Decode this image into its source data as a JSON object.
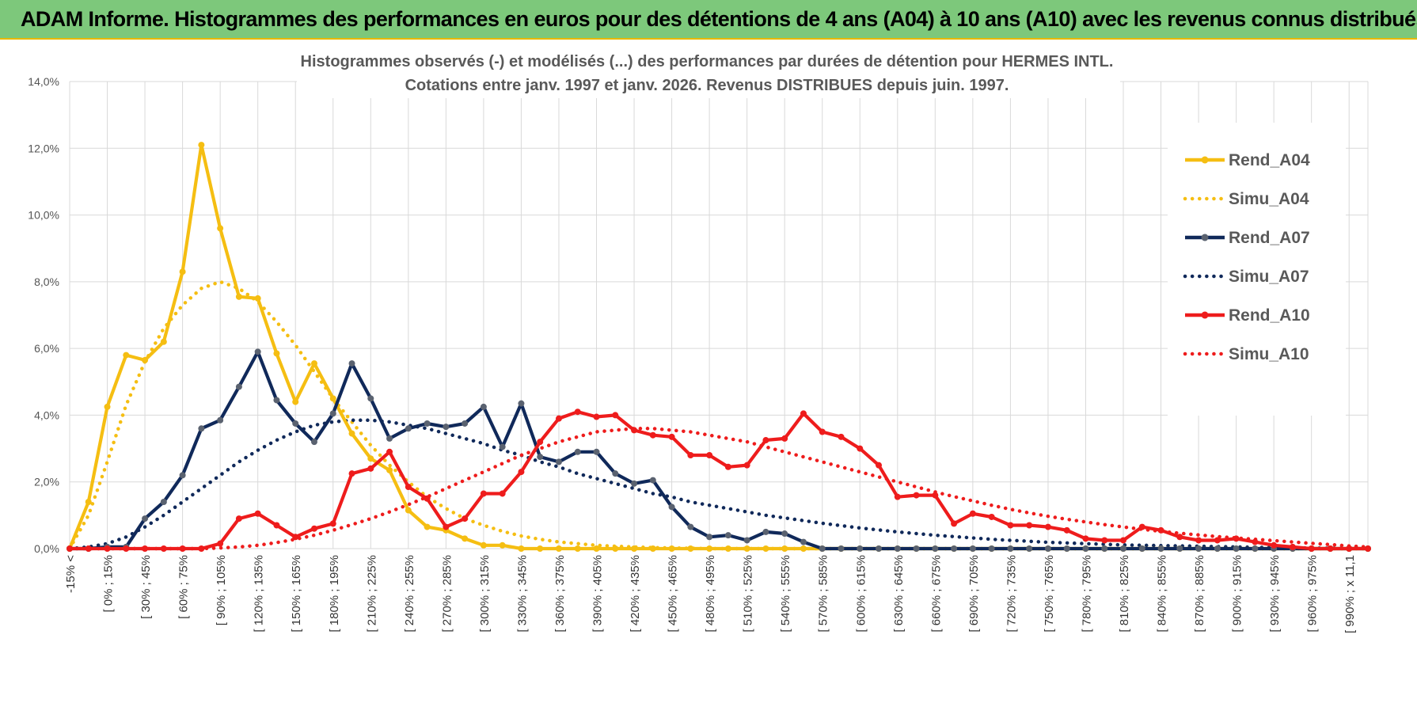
{
  "banner": {
    "title": "ADAM Informe. Histogrammes des performances en euros pour des détentions de 4 ans (A04) à 10 ans (A10) avec les revenus connus distribués"
  },
  "colors": {
    "banner_bg": "#7dc87b",
    "A04": "#f5be12",
    "A07": "#10295a",
    "A10": "#ee1c1c",
    "marker_A07": "#5a6270"
  },
  "chart_data": {
    "type": "line",
    "title": [
      "Histogrammes observés (-) et modélisés (...) des performances par durées de détention pour HERMES INTL.",
      "Cotations entre janv. 1997 et janv. 2026. Revenus DISTRIBUES depuis juin. 1997."
    ],
    "ylim": [
      0,
      14
    ],
    "y_ticks": [
      "0,0%",
      "2,0%",
      "4,0%",
      "6,0%",
      "8,0%",
      "10,0%",
      "12,0%",
      "14,0%"
    ],
    "x_tick_labels": [
      "-15% <",
      "[ 0% ; 15%",
      "[ 30% ; 45%",
      "[ 60% ; 75%",
      "[ 90% ; 105%",
      "[ 120% ; 135%",
      "[ 150% ; 165%",
      "[ 180% ; 195%",
      "[ 210% ; 225%",
      "[ 240% ; 255%",
      "[ 270% ; 285%",
      "[ 300% ; 315%",
      "[ 330% ; 345%",
      "[ 360% ; 375%",
      "[ 390% ; 405%",
      "[ 420% ; 435%",
      "[ 450% ; 465%",
      "[ 480% ; 495%",
      "[ 510% ; 525%",
      "[ 540% ; 555%",
      "[ 570% ; 585%",
      "[ 600% ; 615%",
      "[ 630% ; 645%",
      "[ 660% ; 675%",
      "[ 690% ; 705%",
      "[ 720% ; 735%",
      "[ 750% ; 765%",
      "[ 780% ; 795%",
      "[ 810% ; 825%",
      "[ 840% ; 855%",
      "[ 870% ; 885%",
      "[ 900% ; 915%",
      "[ 930% ; 945%",
      "[ 960% ; 975%",
      "[ 990% ; x 11,1"
    ],
    "n_bins": 70,
    "series": [
      {
        "name": "Rend_A04",
        "style": "solid",
        "color_key": "A04",
        "values": [
          0,
          1.4,
          4.25,
          5.8,
          5.65,
          6.2,
          8.3,
          12.1,
          9.6,
          7.55,
          7.5,
          5.85,
          4.4,
          5.55,
          4.5,
          3.45,
          2.7,
          2.35,
          1.15,
          0.65,
          0.55,
          0.3,
          0.1,
          0.1,
          0,
          0,
          0,
          0,
          0,
          0,
          0,
          0,
          0,
          0,
          0,
          0,
          0,
          0,
          0,
          0,
          0,
          0,
          0,
          0,
          0,
          0,
          0,
          0,
          0,
          0,
          0,
          0,
          0,
          0,
          0,
          0,
          0,
          0,
          0,
          0,
          0,
          0,
          0,
          0,
          0,
          0,
          0,
          0,
          0,
          0
        ]
      },
      {
        "name": "Simu_A04",
        "style": "dotted",
        "color_key": "A04",
        "values": [
          0,
          1,
          2.6,
          4.3,
          5.6,
          6.6,
          7.3,
          7.8,
          8.0,
          7.8,
          7.4,
          6.8,
          6.1,
          5.3,
          4.5,
          3.8,
          3.1,
          2.5,
          2,
          1.55,
          1.2,
          0.9,
          0.7,
          0.52,
          0.38,
          0.28,
          0.2,
          0.15,
          0.1,
          0.07,
          0.05,
          0.03,
          0.02,
          0.01,
          0,
          0,
          0,
          0,
          0,
          0,
          0,
          0,
          0,
          0,
          0,
          0,
          0,
          0,
          0,
          0,
          0,
          0,
          0,
          0,
          0,
          0,
          0,
          0,
          0,
          0,
          0,
          0,
          0,
          0,
          0,
          0,
          0,
          0,
          0,
          0
        ]
      },
      {
        "name": "Rend_A07",
        "style": "solid",
        "color_key": "A07",
        "values": [
          0,
          0,
          0.05,
          0.05,
          0.9,
          1.4,
          2.2,
          3.6,
          3.85,
          4.85,
          5.9,
          4.45,
          3.75,
          3.2,
          4.05,
          5.55,
          4.5,
          3.3,
          3.6,
          3.75,
          3.65,
          3.75,
          4.25,
          3.05,
          4.35,
          2.75,
          2.6,
          2.9,
          2.9,
          2.25,
          1.95,
          2.05,
          1.25,
          0.65,
          0.35,
          0.4,
          0.25,
          0.5,
          0.45,
          0.2,
          0,
          0,
          0,
          0,
          0,
          0,
          0,
          0,
          0,
          0,
          0,
          0,
          0,
          0,
          0,
          0,
          0,
          0,
          0,
          0,
          0,
          0,
          0,
          0,
          0,
          0,
          0,
          0,
          0,
          0
        ]
      },
      {
        "name": "Simu_A07",
        "style": "dotted",
        "color_key": "A07",
        "values": [
          0,
          0.05,
          0.15,
          0.35,
          0.65,
          1.0,
          1.4,
          1.8,
          2.2,
          2.6,
          2.95,
          3.25,
          3.5,
          3.7,
          3.8,
          3.85,
          3.85,
          3.8,
          3.7,
          3.6,
          3.45,
          3.3,
          3.15,
          2.95,
          2.8,
          2.6,
          2.45,
          2.25,
          2.1,
          1.95,
          1.8,
          1.65,
          1.55,
          1.4,
          1.3,
          1.2,
          1.1,
          1.0,
          0.92,
          0.84,
          0.76,
          0.69,
          0.62,
          0.56,
          0.5,
          0.45,
          0.4,
          0.36,
          0.32,
          0.28,
          0.25,
          0.22,
          0.19,
          0.17,
          0.15,
          0.13,
          0.11,
          0.1,
          0.09,
          0.08,
          0.07,
          0.06,
          0.05,
          0.04,
          0.03,
          0.02,
          0.02,
          0.01,
          0.01,
          0
        ]
      },
      {
        "name": "Rend_A10",
        "style": "solid",
        "color_key": "A10",
        "values": [
          0,
          0,
          0,
          0,
          0,
          0,
          0,
          0,
          0.15,
          0.9,
          1.05,
          0.7,
          0.35,
          0.6,
          0.75,
          2.25,
          2.4,
          2.9,
          1.85,
          1.5,
          0.65,
          0.9,
          1.65,
          1.65,
          2.3,
          3.2,
          3.9,
          4.1,
          3.95,
          4.0,
          3.55,
          3.4,
          3.35,
          2.8,
          2.8,
          2.45,
          2.5,
          3.25,
          3.3,
          4.05,
          3.5,
          3.35,
          3.0,
          2.5,
          1.55,
          1.6,
          1.6,
          0.75,
          1.05,
          0.95,
          0.7,
          0.7,
          0.65,
          0.55,
          0.3,
          0.25,
          0.25,
          0.65,
          0.55,
          0.35,
          0.25,
          0.25,
          0.3,
          0.2,
          0.1,
          0.05,
          0,
          0,
          0,
          0
        ]
      },
      {
        "name": "Simu_A10",
        "style": "dotted",
        "color_key": "A10",
        "values": [
          0,
          0,
          0,
          0,
          0,
          0,
          0,
          0,
          0.02,
          0.05,
          0.1,
          0.18,
          0.28,
          0.4,
          0.55,
          0.72,
          0.9,
          1.1,
          1.32,
          1.55,
          1.8,
          2.05,
          2.3,
          2.55,
          2.8,
          3.0,
          3.2,
          3.35,
          3.5,
          3.55,
          3.6,
          3.6,
          3.55,
          3.5,
          3.4,
          3.3,
          3.2,
          3.05,
          2.9,
          2.75,
          2.6,
          2.45,
          2.3,
          2.15,
          2.0,
          1.85,
          1.7,
          1.56,
          1.43,
          1.3,
          1.18,
          1.07,
          0.97,
          0.88,
          0.8,
          0.72,
          0.65,
          0.58,
          0.52,
          0.46,
          0.41,
          0.36,
          0.32,
          0.28,
          0.24,
          0.2,
          0.16,
          0.12,
          0.08,
          0.05
        ]
      }
    ],
    "legend": [
      "Rend_A04",
      "Simu_A04",
      "Rend_A07",
      "Simu_A07",
      "Rend_A10",
      "Simu_A10"
    ],
    "legend_position": "top-right"
  }
}
